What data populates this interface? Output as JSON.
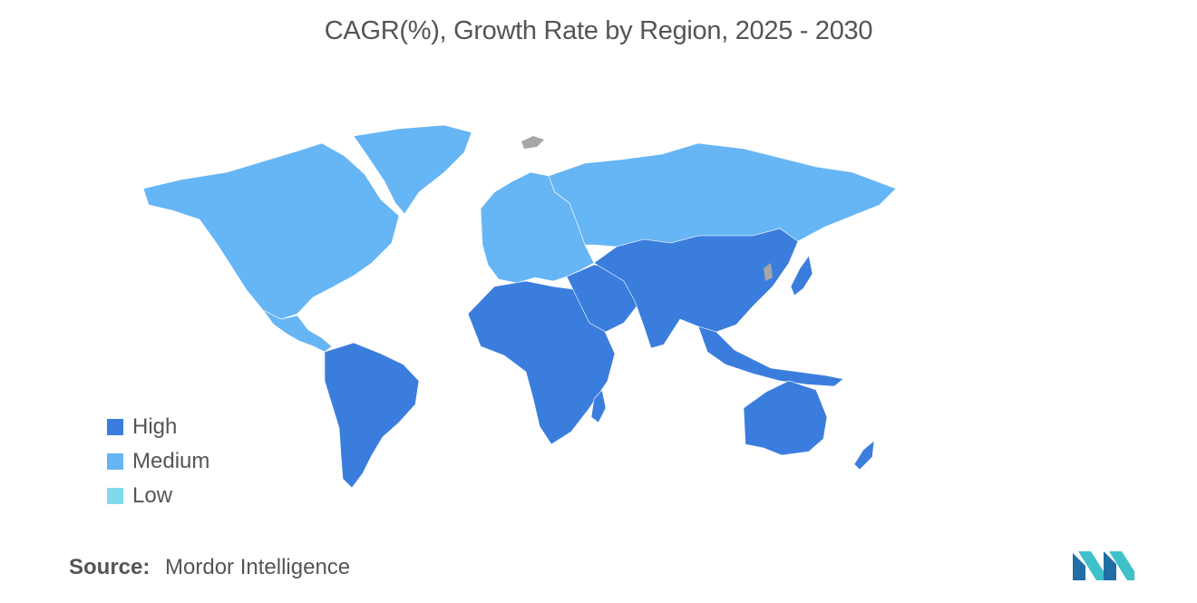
{
  "title": "CAGR(%), Growth Rate by Region, 2025 - 2030",
  "legend": [
    {
      "label": "High",
      "color": "#3b7ddd"
    },
    {
      "label": "Medium",
      "color": "#66b5f5"
    },
    {
      "label": "Low",
      "color": "#7fdbea"
    }
  ],
  "colors": {
    "no_data": "#a6a6a6",
    "logo_dark": "#1f6fa5",
    "logo_light": "#40c0c9"
  },
  "regions": [
    {
      "name": "North America",
      "level": "Medium"
    },
    {
      "name": "Greenland",
      "level": "Medium"
    },
    {
      "name": "Europe",
      "level": "Medium"
    },
    {
      "name": "Russia",
      "level": "Medium"
    },
    {
      "name": "Central America",
      "level": "Medium"
    },
    {
      "name": "South America",
      "level": "High"
    },
    {
      "name": "Africa",
      "level": "High"
    },
    {
      "name": "Middle East",
      "level": "High"
    },
    {
      "name": "Asia",
      "level": "High"
    },
    {
      "name": "Southeast Asia",
      "level": "High"
    },
    {
      "name": "Japan",
      "level": "High"
    },
    {
      "name": "Australia",
      "level": "High"
    },
    {
      "name": "New Zealand",
      "level": "High"
    }
  ],
  "source": {
    "label": "Source:",
    "value": "Mordor Intelligence"
  }
}
